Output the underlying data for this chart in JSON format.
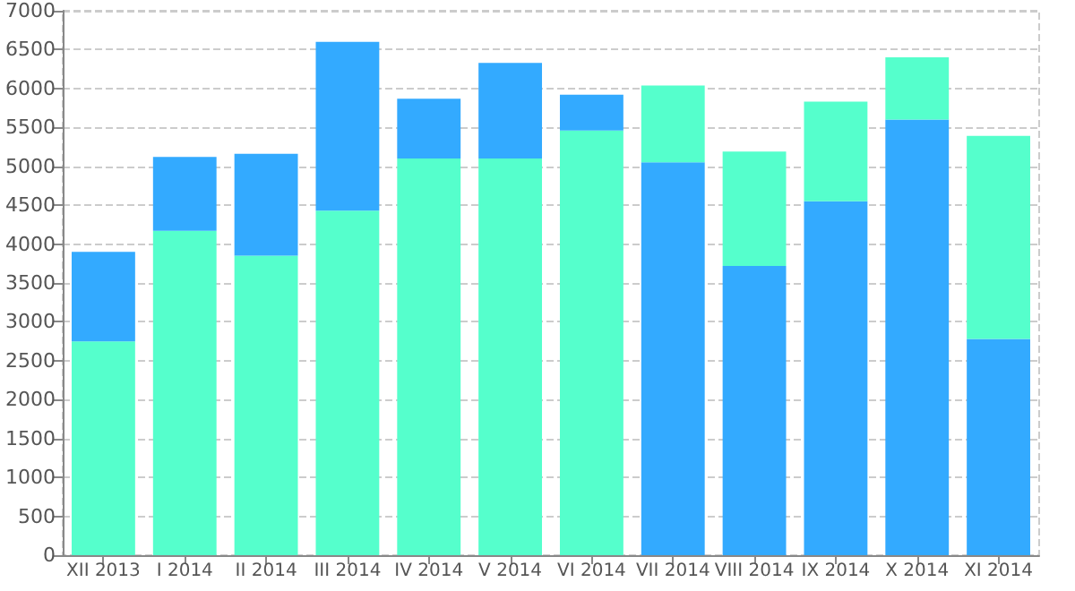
{
  "chart_data": {
    "type": "bar",
    "stacked": true,
    "categories": [
      "XII 2013",
      "I 2014",
      "II 2014",
      "III 2014",
      "IV 2014",
      "V 2014",
      "VI 2014",
      "VII 2014",
      "VIII 2014",
      "IX 2014",
      "X 2014",
      "XI 2014"
    ],
    "series": [
      {
        "colors": [
          "#55ffcc",
          "#55ffcc",
          "#55ffcc",
          "#55ffcc",
          "#55ffcc",
          "#55ffcc",
          "#55ffcc",
          "#33aaff",
          "#33aaff",
          "#33aaff",
          "#33aaff",
          "#33aaff"
        ],
        "values": [
          2750,
          4170,
          3850,
          4430,
          5100,
          5100,
          5460,
          5050,
          3720,
          4550,
          5600,
          2780
        ]
      },
      {
        "colors": [
          "#33aaff",
          "#33aaff",
          "#33aaff",
          "#33aaff",
          "#33aaff",
          "#33aaff",
          "#33aaff",
          "#55ffcc",
          "#55ffcc",
          "#55ffcc",
          "#55ffcc",
          "#55ffcc"
        ],
        "values": [
          1150,
          950,
          1310,
          2170,
          770,
          1230,
          460,
          990,
          1470,
          1280,
          800,
          2610
        ]
      }
    ],
    "ylim": [
      0,
      7000
    ],
    "yticks": [
      0,
      500,
      1000,
      1500,
      2000,
      2500,
      3000,
      3500,
      4000,
      4500,
      5000,
      5500,
      6000,
      6500,
      7000
    ],
    "grid": "y"
  }
}
